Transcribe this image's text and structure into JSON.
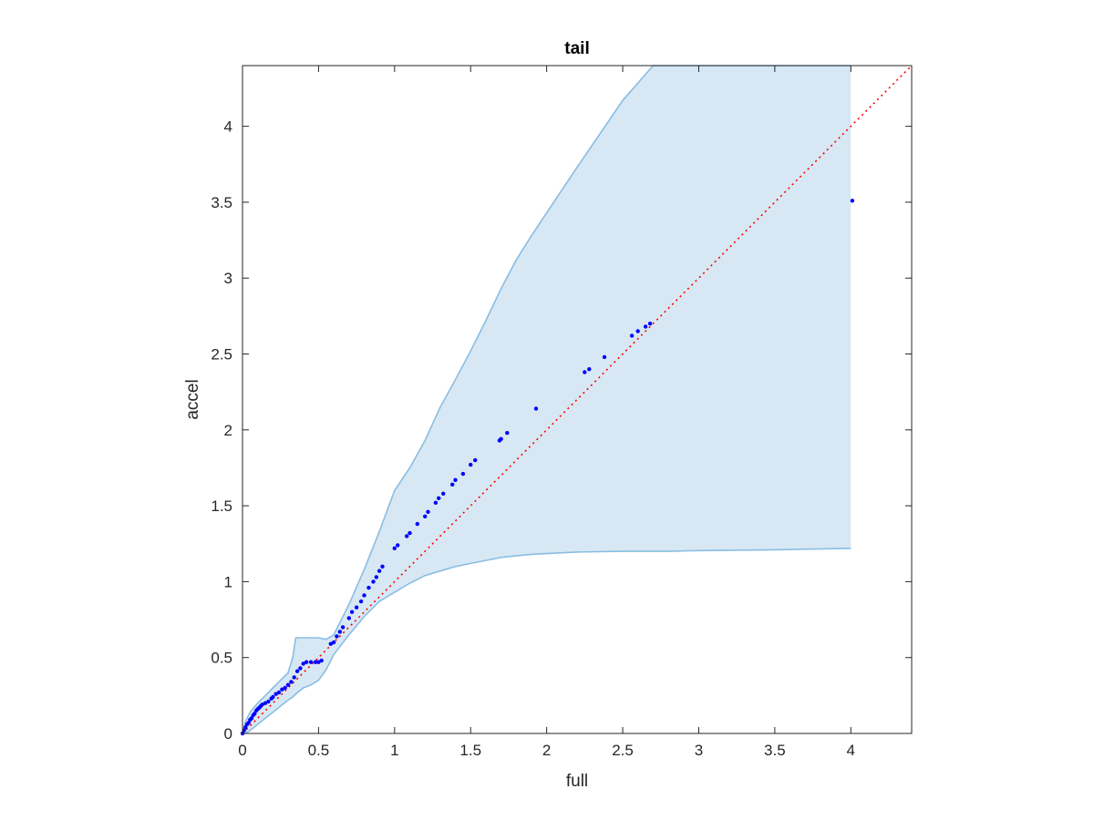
{
  "chart_data": {
    "type": "scatter",
    "title": "tail",
    "xlabel": "full",
    "ylabel": "accel",
    "xlim": [
      0,
      4.4
    ],
    "ylim": [
      0,
      4.4
    ],
    "xticks": [
      "0",
      "0.5",
      "1",
      "1.5",
      "2",
      "2.5",
      "3",
      "3.5",
      "4"
    ],
    "yticks": [
      "0",
      "0.5",
      "1",
      "1.5",
      "2",
      "2.5",
      "3",
      "3.5",
      "4"
    ],
    "grid": false,
    "legend": "none",
    "colors": {
      "points": "#0000ff",
      "reference_line": "#ff0000",
      "band_fill": "#d7e8f4",
      "band_edge": "#89bde3",
      "axes": "#262626"
    },
    "reference_line": {
      "x": [
        0,
        4.4
      ],
      "y": [
        0,
        4.4
      ],
      "style": "dotted"
    },
    "confidence_band": {
      "x": [
        0,
        0.02,
        0.05,
        0.1,
        0.15,
        0.2,
        0.25,
        0.3,
        0.33,
        0.35,
        0.4,
        0.45,
        0.5,
        0.55,
        0.6,
        0.7,
        0.8,
        0.9,
        1.0,
        1.1,
        1.2,
        1.3,
        1.4,
        1.5,
        1.6,
        1.7,
        1.8,
        1.9,
        2.0,
        2.2,
        2.5,
        2.7,
        2.8,
        3.0,
        3.5,
        4.0
      ],
      "upper": [
        0,
        0.08,
        0.14,
        0.2,
        0.25,
        0.3,
        0.35,
        0.4,
        0.5,
        0.63,
        0.63,
        0.63,
        0.63,
        0.62,
        0.65,
        0.85,
        1.08,
        1.33,
        1.6,
        1.75,
        1.93,
        2.15,
        2.33,
        2.52,
        2.72,
        2.93,
        3.12,
        3.28,
        3.43,
        3.73,
        4.17,
        4.4,
        4.4,
        4.4,
        4.4,
        4.4
      ],
      "lower": [
        0,
        0.0,
        0.02,
        0.06,
        0.1,
        0.14,
        0.18,
        0.22,
        0.24,
        0.26,
        0.3,
        0.32,
        0.35,
        0.42,
        0.52,
        0.65,
        0.77,
        0.87,
        0.93,
        0.99,
        1.04,
        1.07,
        1.1,
        1.12,
        1.14,
        1.16,
        1.17,
        1.18,
        1.185,
        1.195,
        1.2,
        1.2,
        1.2,
        1.205,
        1.21,
        1.22
      ]
    },
    "series": [
      {
        "x": [
          0.0,
          0.01,
          0.02,
          0.03,
          0.04,
          0.05,
          0.06,
          0.07,
          0.08,
          0.09,
          0.1,
          0.11,
          0.12,
          0.13,
          0.15,
          0.17,
          0.19,
          0.2,
          0.22,
          0.24,
          0.26,
          0.28,
          0.3,
          0.32,
          0.34,
          0.36,
          0.38,
          0.4,
          0.42,
          0.45,
          0.48,
          0.5,
          0.52,
          0.58,
          0.6,
          0.62,
          0.64,
          0.66,
          0.7,
          0.72,
          0.75,
          0.78,
          0.8,
          0.83,
          0.86,
          0.88,
          0.9,
          0.92,
          1.0,
          1.02,
          1.08,
          1.1,
          1.15,
          1.2,
          1.22,
          1.27,
          1.29,
          1.32,
          1.38,
          1.4,
          1.45,
          1.5,
          1.53,
          1.69,
          1.7,
          1.74,
          1.93,
          2.25,
          2.28,
          2.38,
          2.56,
          2.6,
          2.65,
          2.68,
          4.01
        ],
        "y": [
          0.0,
          0.02,
          0.04,
          0.06,
          0.07,
          0.09,
          0.1,
          0.12,
          0.13,
          0.15,
          0.16,
          0.17,
          0.18,
          0.19,
          0.2,
          0.21,
          0.23,
          0.24,
          0.26,
          0.27,
          0.29,
          0.3,
          0.32,
          0.34,
          0.37,
          0.41,
          0.43,
          0.46,
          0.47,
          0.47,
          0.47,
          0.47,
          0.48,
          0.59,
          0.6,
          0.64,
          0.67,
          0.7,
          0.76,
          0.8,
          0.83,
          0.87,
          0.91,
          0.96,
          1.0,
          1.03,
          1.07,
          1.1,
          1.22,
          1.24,
          1.3,
          1.32,
          1.38,
          1.43,
          1.46,
          1.52,
          1.55,
          1.58,
          1.64,
          1.67,
          1.71,
          1.77,
          1.8,
          1.93,
          1.94,
          1.98,
          2.14,
          2.38,
          2.4,
          2.48,
          2.62,
          2.65,
          2.68,
          2.7,
          3.51
        ]
      }
    ]
  }
}
